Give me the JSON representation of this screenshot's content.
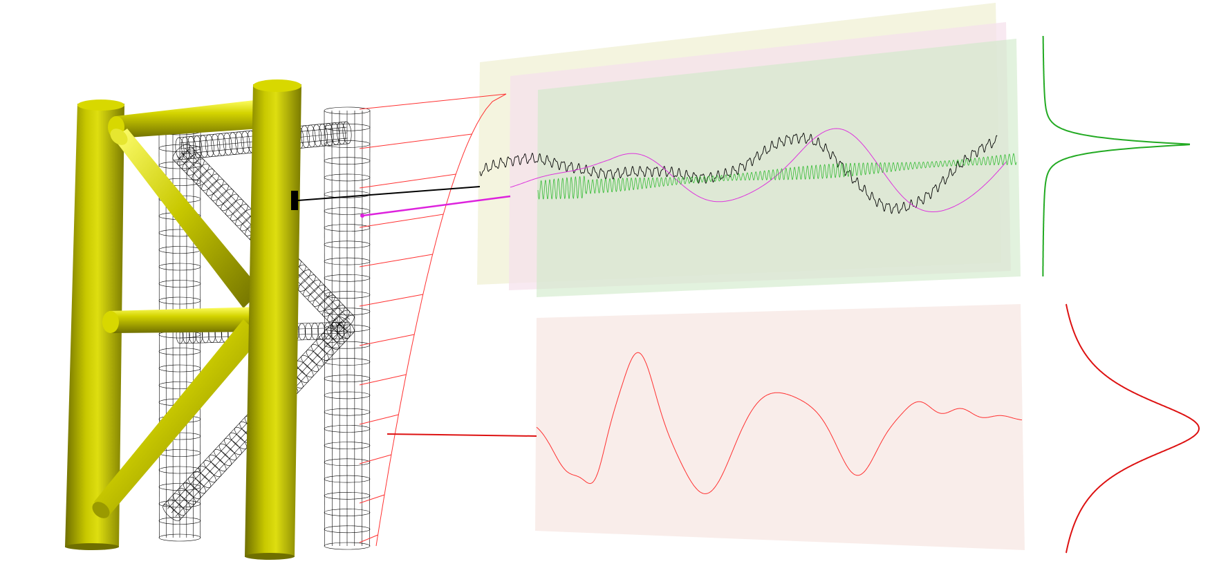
{
  "colors": {
    "pile": "#b9b900",
    "pile_highlight": "#ffff55",
    "pile_shadow": "#6f6f00",
    "wireframe": "#000000",
    "profile_red": "#ff3030",
    "signal_black": "#000000",
    "signal_magenta": "#dd33dd",
    "signal_green": "#33bb33",
    "panel_yellow": "#f3f3dc",
    "panel_pink": "#f7e4ee",
    "panel_green": "#cfe9c8",
    "panel_red": "#f8ebe8"
  },
  "icons": {
    "structure": "offshore-jacket-frame",
    "sensor": "sensor-marker"
  }
}
